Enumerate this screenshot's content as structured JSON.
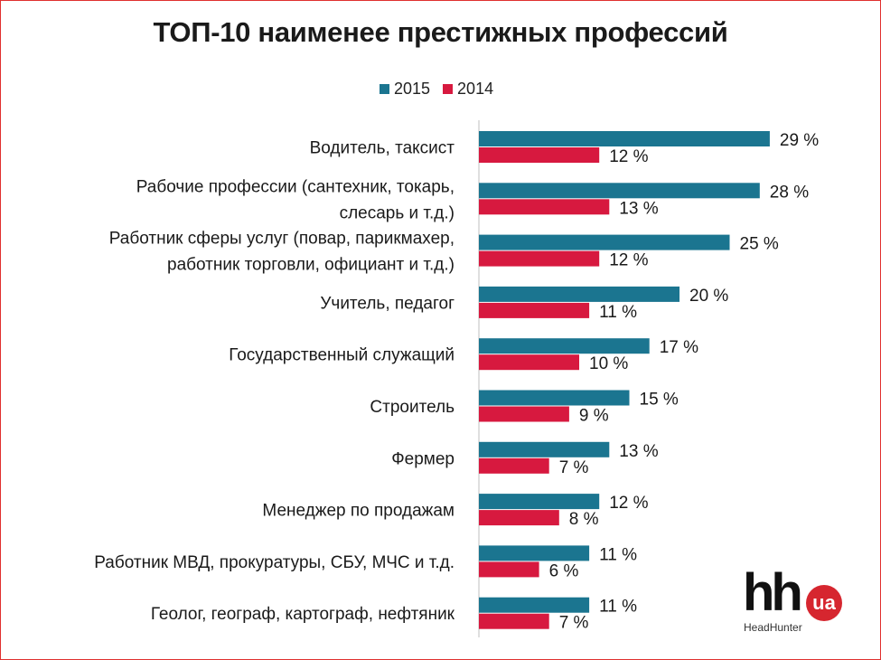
{
  "chart_data": {
    "type": "bar",
    "orientation": "horizontal",
    "title": "ТОП-10 наименее престижных профессий",
    "categories": [
      [
        "Водитель, таксист"
      ],
      [
        "Рабочие профессии (сантехник, токарь,",
        "слесарь и т.д.)"
      ],
      [
        "Работник сферы услуг (повар, парикмахер,",
        "работник торговли, официант и т.д.)"
      ],
      [
        "Учитель, педагог"
      ],
      [
        "Государственный служащий"
      ],
      [
        "Строитель"
      ],
      [
        "Фермер"
      ],
      [
        "Менеджер по продажам"
      ],
      [
        "Работник МВД, прокуратуры, СБУ, МЧС и т.д."
      ],
      [
        "Геолог, географ, картограф, нефтяник"
      ]
    ],
    "series": [
      {
        "name": "2015",
        "color": "#1b7590",
        "values": [
          29,
          28,
          25,
          20,
          17,
          15,
          13,
          12,
          11,
          11
        ]
      },
      {
        "name": "2014",
        "color": "#d7193f",
        "values": [
          12,
          13,
          12,
          11,
          10,
          9,
          7,
          8,
          6,
          7
        ]
      }
    ],
    "value_labels": {
      "2015": [
        "29 %",
        "28 %",
        "25 %",
        "20 %",
        "17 %",
        "15 %",
        "13 %",
        "12 %",
        "11 %",
        "11 %"
      ],
      "2014": [
        "12 %",
        "13 %",
        "12 %",
        "11 %",
        "10 %",
        "9 %",
        "7 %",
        "8 %",
        "6 %",
        "7 %"
      ]
    },
    "legend_position": "top",
    "grid": false,
    "xlim": [
      0,
      40
    ]
  },
  "logo": {
    "text_main": "hh",
    "text_badge": "ua",
    "text_sub": "HeadHunter"
  }
}
